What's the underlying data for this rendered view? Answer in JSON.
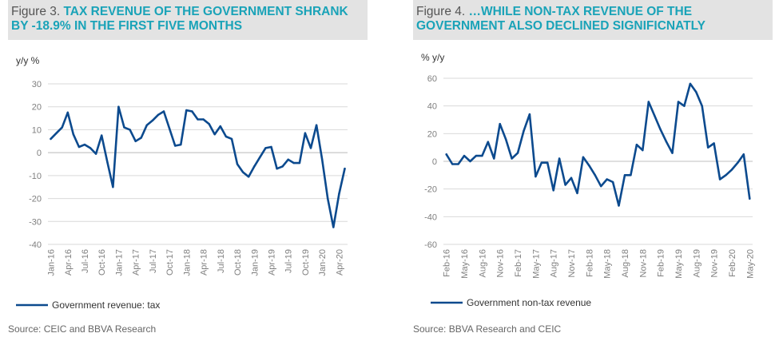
{
  "colors": {
    "series": "#0c4a8e",
    "title": "#1aa3b8",
    "title_bg": "#e3e3e3",
    "grid": "#d9d9d9"
  },
  "left": {
    "figure_label": "Figure 3.",
    "title": "TAX REVENUE OF THE GOVERNMENT SHRANK BY -18.9% IN THE FIRST FIVE MONTHS",
    "source": "Source: CEIC and BBVA Research",
    "unit": "y/y %",
    "legend": "Government revenue: tax"
  },
  "right": {
    "figure_label": "Figure 4.",
    "title": "…WHILE NON-TAX REVENUE OF THE GOVERNMENT ALSO DECLINED SIGNIFICNATLY",
    "source": "Source: BBVA Research and CEIC",
    "unit": "% y/y",
    "legend": "Government non-tax revenue"
  },
  "chart_data": [
    {
      "type": "line",
      "ylabel": "y/y %",
      "ylim": [
        -40,
        30
      ],
      "yticks": [
        -40,
        -30,
        -20,
        -10,
        0,
        10,
        20,
        30
      ],
      "grid": true,
      "legend_position": "bottom-left",
      "x": [
        "Jan-16",
        "Feb-16",
        "Mar-16",
        "Apr-16",
        "May-16",
        "Jun-16",
        "Jul-16",
        "Aug-16",
        "Sep-16",
        "Oct-16",
        "Nov-16",
        "Dec-16",
        "Jan-17",
        "Feb-17",
        "Mar-17",
        "Apr-17",
        "May-17",
        "Jun-17",
        "Jul-17",
        "Aug-17",
        "Sep-17",
        "Oct-17",
        "Nov-17",
        "Dec-17",
        "Jan-18",
        "Feb-18",
        "Mar-18",
        "Apr-18",
        "May-18",
        "Jun-18",
        "Jul-18",
        "Aug-18",
        "Sep-18",
        "Oct-18",
        "Nov-18",
        "Dec-18",
        "Jan-19",
        "Feb-19",
        "Mar-19",
        "Apr-19",
        "May-19",
        "Jun-19",
        "Jul-19",
        "Aug-19",
        "Sep-19",
        "Oct-19",
        "Nov-19",
        "Dec-19",
        "Jan-20",
        "Feb-20",
        "Mar-20",
        "Apr-20",
        "May-20"
      ],
      "xtick_labels": [
        "Jan-16",
        "Apr-16",
        "Jul-16",
        "Oct-16",
        "Jan-17",
        "Apr-17",
        "Jul-17",
        "Oct-17",
        "Jan-18",
        "Apr-18",
        "Jul-18",
        "Oct-18",
        "Jan-19",
        "Apr-19",
        "Jul-19",
        "Oct-19",
        "Jan-20",
        "Apr-20"
      ],
      "series": [
        {
          "name": "Government revenue: tax",
          "values": [
            6,
            8.5,
            11,
            17.5,
            8,
            2.5,
            3.5,
            2,
            -0.5,
            7.5,
            -4,
            -15,
            20,
            11,
            10,
            5,
            6.5,
            12,
            14,
            16.5,
            18,
            10.5,
            3,
            3.5,
            18.5,
            18,
            14.5,
            14.5,
            12.5,
            8,
            11.5,
            7,
            6,
            -5,
            -8.5,
            -10.5,
            -6,
            -2,
            2,
            2.5,
            -7,
            -6,
            -3,
            -4.5,
            -4.5,
            8.5,
            2,
            12,
            -3,
            -20,
            -32.5,
            -18,
            -7
          ]
        }
      ]
    },
    {
      "type": "line",
      "ylabel": "% y/y",
      "ylim": [
        -60,
        60
      ],
      "yticks": [
        -60,
        -40,
        -20,
        0,
        20,
        40,
        60
      ],
      "grid": true,
      "legend_position": "bottom-left",
      "x": [
        "Feb-16",
        "Mar-16",
        "Apr-16",
        "May-16",
        "Jun-16",
        "Jul-16",
        "Aug-16",
        "Sep-16",
        "Oct-16",
        "Nov-16",
        "Dec-16",
        "Jan-17",
        "Feb-17",
        "Mar-17",
        "Apr-17",
        "May-17",
        "Jun-17",
        "Jul-17",
        "Aug-17",
        "Sep-17",
        "Oct-17",
        "Nov-17",
        "Dec-17",
        "Jan-18",
        "Feb-18",
        "Mar-18",
        "Apr-18",
        "May-18",
        "Jun-18",
        "Jul-18",
        "Aug-18",
        "Sep-18",
        "Oct-18",
        "Nov-18",
        "Dec-18",
        "Jan-19",
        "Feb-19",
        "Mar-19",
        "Apr-19",
        "May-19",
        "Jun-19",
        "Jul-19",
        "Aug-19",
        "Sep-19",
        "Oct-19",
        "Nov-19",
        "Dec-19",
        "Jan-20",
        "Feb-20",
        "Mar-20",
        "Apr-20",
        "May-20"
      ],
      "xtick_labels": [
        "Feb-16",
        "May-16",
        "Aug-16",
        "Nov-16",
        "Feb-17",
        "May-17",
        "Aug-17",
        "Nov-17",
        "Feb-18",
        "May-18",
        "Aug-18",
        "Nov-18",
        "Feb-19",
        "May-19",
        "Aug-19",
        "Nov-19",
        "Feb-20",
        "May-20"
      ],
      "series": [
        {
          "name": "Government non-tax revenue",
          "values": [
            5,
            -2,
            -2,
            4,
            0,
            4,
            4,
            14,
            2,
            27,
            16,
            2,
            6,
            22,
            34,
            -11,
            -1,
            -1,
            -21,
            2,
            -17,
            -12,
            -23,
            3,
            -3,
            -10,
            -18,
            -13,
            -15,
            -32,
            -10,
            -10,
            12,
            8,
            43,
            33,
            23,
            14,
            6,
            43,
            40,
            56,
            50,
            40,
            10,
            13,
            -13,
            -10,
            -6,
            -1,
            5,
            -27
          ]
        }
      ]
    }
  ]
}
